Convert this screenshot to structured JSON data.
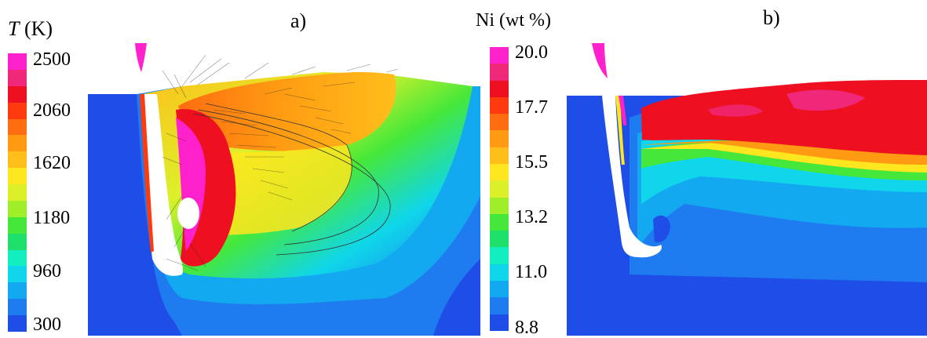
{
  "panel_a": {
    "label": "a)",
    "colorbar": {
      "title_var": "T",
      "title_unit": " (K)",
      "ticks": [
        "2500",
        "2060",
        "1620",
        "1180",
        "960",
        "300"
      ]
    }
  },
  "panel_b": {
    "label": "b)",
    "colorbar": {
      "title": "Ni (wt %)",
      "ticks": [
        "20.0",
        "17.7",
        "15.5",
        "13.2",
        "11.0",
        "8.8"
      ]
    }
  },
  "colors": {
    "scale": [
      "#1f4de8",
      "#1f7bf0",
      "#12a9f0",
      "#0fd6ea",
      "#12eec0",
      "#1ee06a",
      "#45e83a",
      "#9eee2a",
      "#dcf02a",
      "#ffe61e",
      "#ffbe1a",
      "#ff9a12",
      "#ff6d10",
      "#ff3a0e",
      "#ee1020",
      "#f0287a",
      "#ff22cc"
    ]
  }
}
